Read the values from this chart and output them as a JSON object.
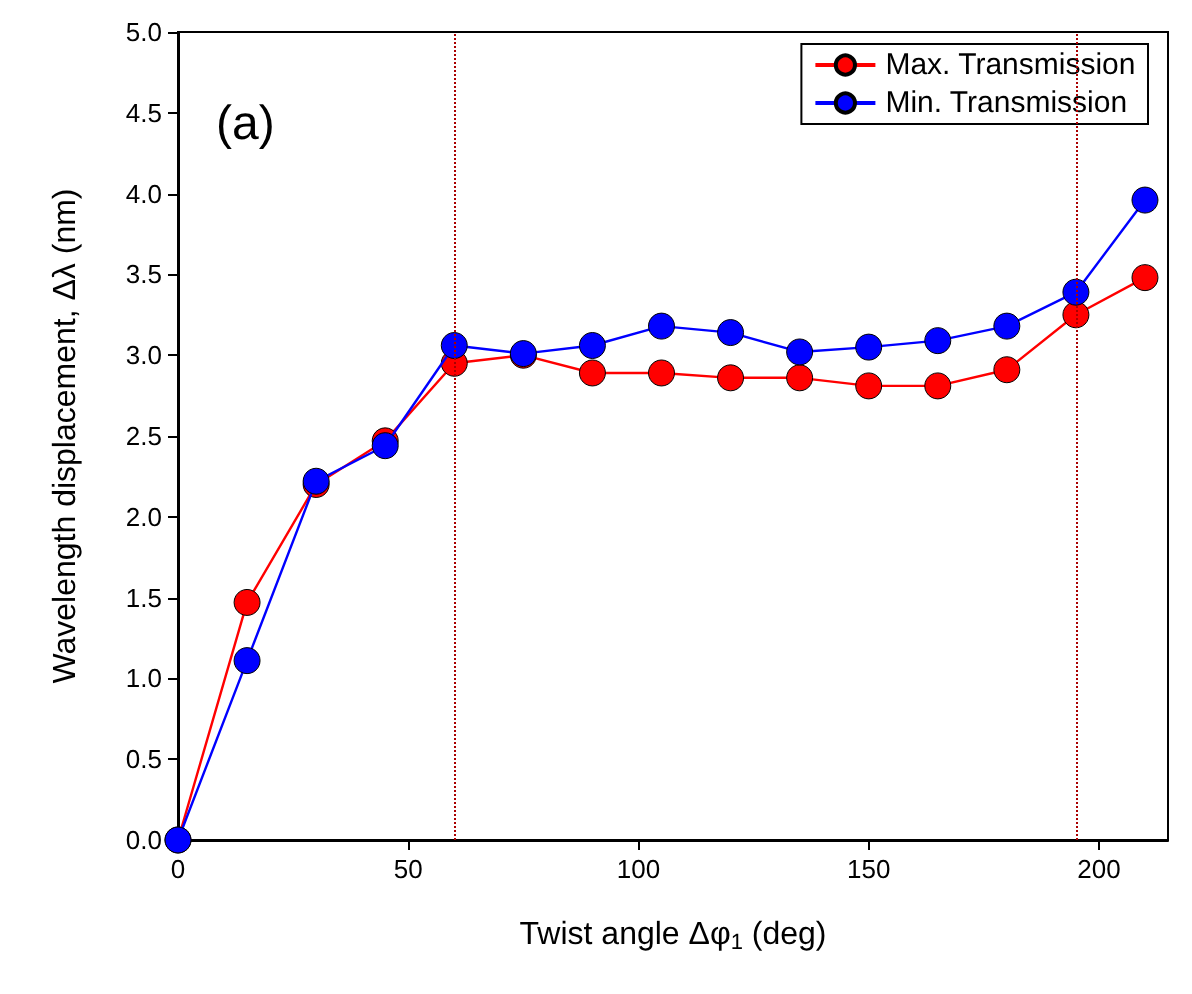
{
  "chart_data": {
    "type": "line",
    "xlabel": "Twist angle Δφ$_{1}$ (deg)",
    "ylabel": "Wavelength displacement, Δλ (nm)",
    "annotations": [
      "(a)"
    ],
    "x": [
      0,
      15,
      30,
      45,
      60,
      75,
      90,
      105,
      120,
      135,
      150,
      165,
      180,
      195,
      210
    ],
    "series": [
      {
        "name": "Max. Transmission",
        "color": "#ff0000",
        "values": [
          0,
          1.47,
          2.2,
          2.47,
          2.95,
          3.0,
          2.89,
          2.89,
          2.86,
          2.86,
          2.81,
          2.81,
          2.91,
          3.25,
          3.48
        ]
      },
      {
        "name": "Min. Transmission",
        "color": "#0000ff",
        "values": [
          0,
          1.11,
          2.22,
          2.44,
          3.06,
          3.01,
          3.06,
          3.18,
          3.14,
          3.02,
          3.05,
          3.09,
          3.18,
          3.39,
          3.96
        ]
      }
    ],
    "xlim": [
      0,
      215
    ],
    "xticks": [
      0,
      50,
      100,
      150,
      200
    ],
    "ylim": [
      0,
      5
    ],
    "yticks": [
      {
        "value": 0,
        "label": "0.0"
      },
      {
        "value": 0.5,
        "label": "0.5"
      },
      {
        "value": 1,
        "label": "1.0"
      },
      {
        "value": 1.5,
        "label": "1.5"
      },
      {
        "value": 2,
        "label": "2.0"
      },
      {
        "value": 2.5,
        "label": "2.5"
      },
      {
        "value": 3,
        "label": "3.0"
      },
      {
        "value": 3.5,
        "label": "3.5"
      },
      {
        "value": 4,
        "label": "4.0"
      },
      {
        "value": 4.5,
        "label": "4.5"
      },
      {
        "value": 5,
        "label": "5.0"
      }
    ],
    "ref_lines": [
      {
        "axis": "x",
        "value": 60,
        "color": "#aa0000",
        "line_style": "dotted"
      },
      {
        "axis": "x",
        "value": 195,
        "color": "#aa0000",
        "line_style": "dotted"
      }
    ],
    "grid": false,
    "legend": "top right",
    "marker": "circle",
    "line_style": "solid"
  }
}
